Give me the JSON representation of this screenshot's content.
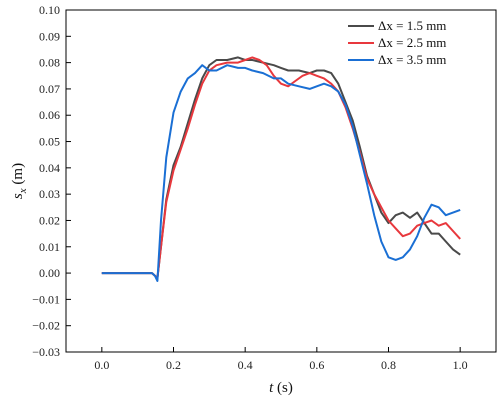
{
  "chart_data": {
    "type": "line",
    "xlabel": {
      "var": "t",
      "unit": " (s)"
    },
    "ylabel": {
      "var": "s",
      "sub": "x",
      "unit": " (m)"
    },
    "xlim": [
      -0.1,
      1.1
    ],
    "ylim": [
      -0.03,
      0.1
    ],
    "xticks": [
      0.0,
      0.2,
      0.4,
      0.6,
      0.8,
      1.0
    ],
    "yticks": [
      -0.03,
      -0.02,
      -0.01,
      0.0,
      0.01,
      0.02,
      0.03,
      0.04,
      0.05,
      0.06,
      0.07,
      0.08,
      0.09,
      0.1
    ],
    "xtick_labels": [
      "0.0",
      "0.2",
      "0.4",
      "0.6",
      "0.8",
      "1.0"
    ],
    "ytick_labels": [
      "−0.03",
      "−0.02",
      "−0.01",
      "0.00",
      "0.01",
      "0.02",
      "0.03",
      "0.04",
      "0.05",
      "0.06",
      "0.07",
      "0.08",
      "0.09",
      "0.10"
    ],
    "legend_position": "top-right",
    "grid": false,
    "series": [
      {
        "name": "Δx = 1.5 mm",
        "color": "#4a4a4a",
        "x": [
          0.0,
          0.14,
          0.148,
          0.155,
          0.165,
          0.18,
          0.2,
          0.22,
          0.24,
          0.26,
          0.28,
          0.3,
          0.32,
          0.35,
          0.38,
          0.4,
          0.42,
          0.45,
          0.48,
          0.5,
          0.52,
          0.55,
          0.58,
          0.6,
          0.62,
          0.64,
          0.66,
          0.68,
          0.7,
          0.72,
          0.74,
          0.76,
          0.78,
          0.8,
          0.82,
          0.84,
          0.86,
          0.88,
          0.9,
          0.92,
          0.94,
          0.96,
          0.98,
          1.0
        ],
        "y": [
          0.0,
          0.0,
          -0.001,
          -0.002,
          0.01,
          0.028,
          0.041,
          0.048,
          0.057,
          0.066,
          0.074,
          0.079,
          0.081,
          0.081,
          0.082,
          0.081,
          0.081,
          0.08,
          0.079,
          0.078,
          0.077,
          0.077,
          0.076,
          0.077,
          0.077,
          0.076,
          0.072,
          0.065,
          0.058,
          0.048,
          0.037,
          0.03,
          0.023,
          0.019,
          0.022,
          0.023,
          0.021,
          0.023,
          0.019,
          0.015,
          0.015,
          0.012,
          0.009,
          0.007
        ]
      },
      {
        "name": "Δx = 2.5 mm",
        "color": "#e8383d",
        "x": [
          0.0,
          0.14,
          0.148,
          0.155,
          0.165,
          0.18,
          0.2,
          0.22,
          0.24,
          0.26,
          0.28,
          0.3,
          0.32,
          0.35,
          0.38,
          0.4,
          0.42,
          0.44,
          0.46,
          0.48,
          0.5,
          0.52,
          0.54,
          0.56,
          0.58,
          0.6,
          0.62,
          0.64,
          0.66,
          0.68,
          0.7,
          0.72,
          0.74,
          0.76,
          0.78,
          0.8,
          0.82,
          0.84,
          0.86,
          0.88,
          0.9,
          0.92,
          0.94,
          0.96,
          0.98,
          1.0
        ],
        "y": [
          0.0,
          0.0,
          -0.001,
          -0.002,
          0.01,
          0.027,
          0.039,
          0.047,
          0.055,
          0.064,
          0.072,
          0.077,
          0.079,
          0.08,
          0.08,
          0.081,
          0.082,
          0.081,
          0.079,
          0.075,
          0.072,
          0.071,
          0.073,
          0.075,
          0.076,
          0.075,
          0.074,
          0.072,
          0.069,
          0.063,
          0.055,
          0.046,
          0.036,
          0.03,
          0.025,
          0.02,
          0.017,
          0.014,
          0.015,
          0.018,
          0.019,
          0.02,
          0.018,
          0.019,
          0.016,
          0.013
        ]
      },
      {
        "name": "Δx = 3.5 mm",
        "color": "#1a6fd4",
        "x": [
          0.0,
          0.14,
          0.148,
          0.155,
          0.165,
          0.18,
          0.2,
          0.22,
          0.24,
          0.26,
          0.28,
          0.3,
          0.32,
          0.35,
          0.38,
          0.4,
          0.42,
          0.45,
          0.48,
          0.5,
          0.52,
          0.55,
          0.58,
          0.6,
          0.62,
          0.64,
          0.66,
          0.68,
          0.7,
          0.72,
          0.74,
          0.76,
          0.78,
          0.8,
          0.82,
          0.84,
          0.86,
          0.88,
          0.9,
          0.92,
          0.94,
          0.96,
          0.98,
          1.0
        ],
        "y": [
          0.0,
          0.0,
          -0.001,
          -0.003,
          0.02,
          0.044,
          0.061,
          0.069,
          0.074,
          0.076,
          0.079,
          0.077,
          0.077,
          0.079,
          0.078,
          0.078,
          0.077,
          0.076,
          0.074,
          0.074,
          0.072,
          0.071,
          0.07,
          0.071,
          0.072,
          0.071,
          0.069,
          0.064,
          0.056,
          0.045,
          0.034,
          0.022,
          0.012,
          0.006,
          0.005,
          0.006,
          0.009,
          0.014,
          0.021,
          0.026,
          0.025,
          0.022,
          0.023,
          0.024
        ]
      }
    ]
  }
}
